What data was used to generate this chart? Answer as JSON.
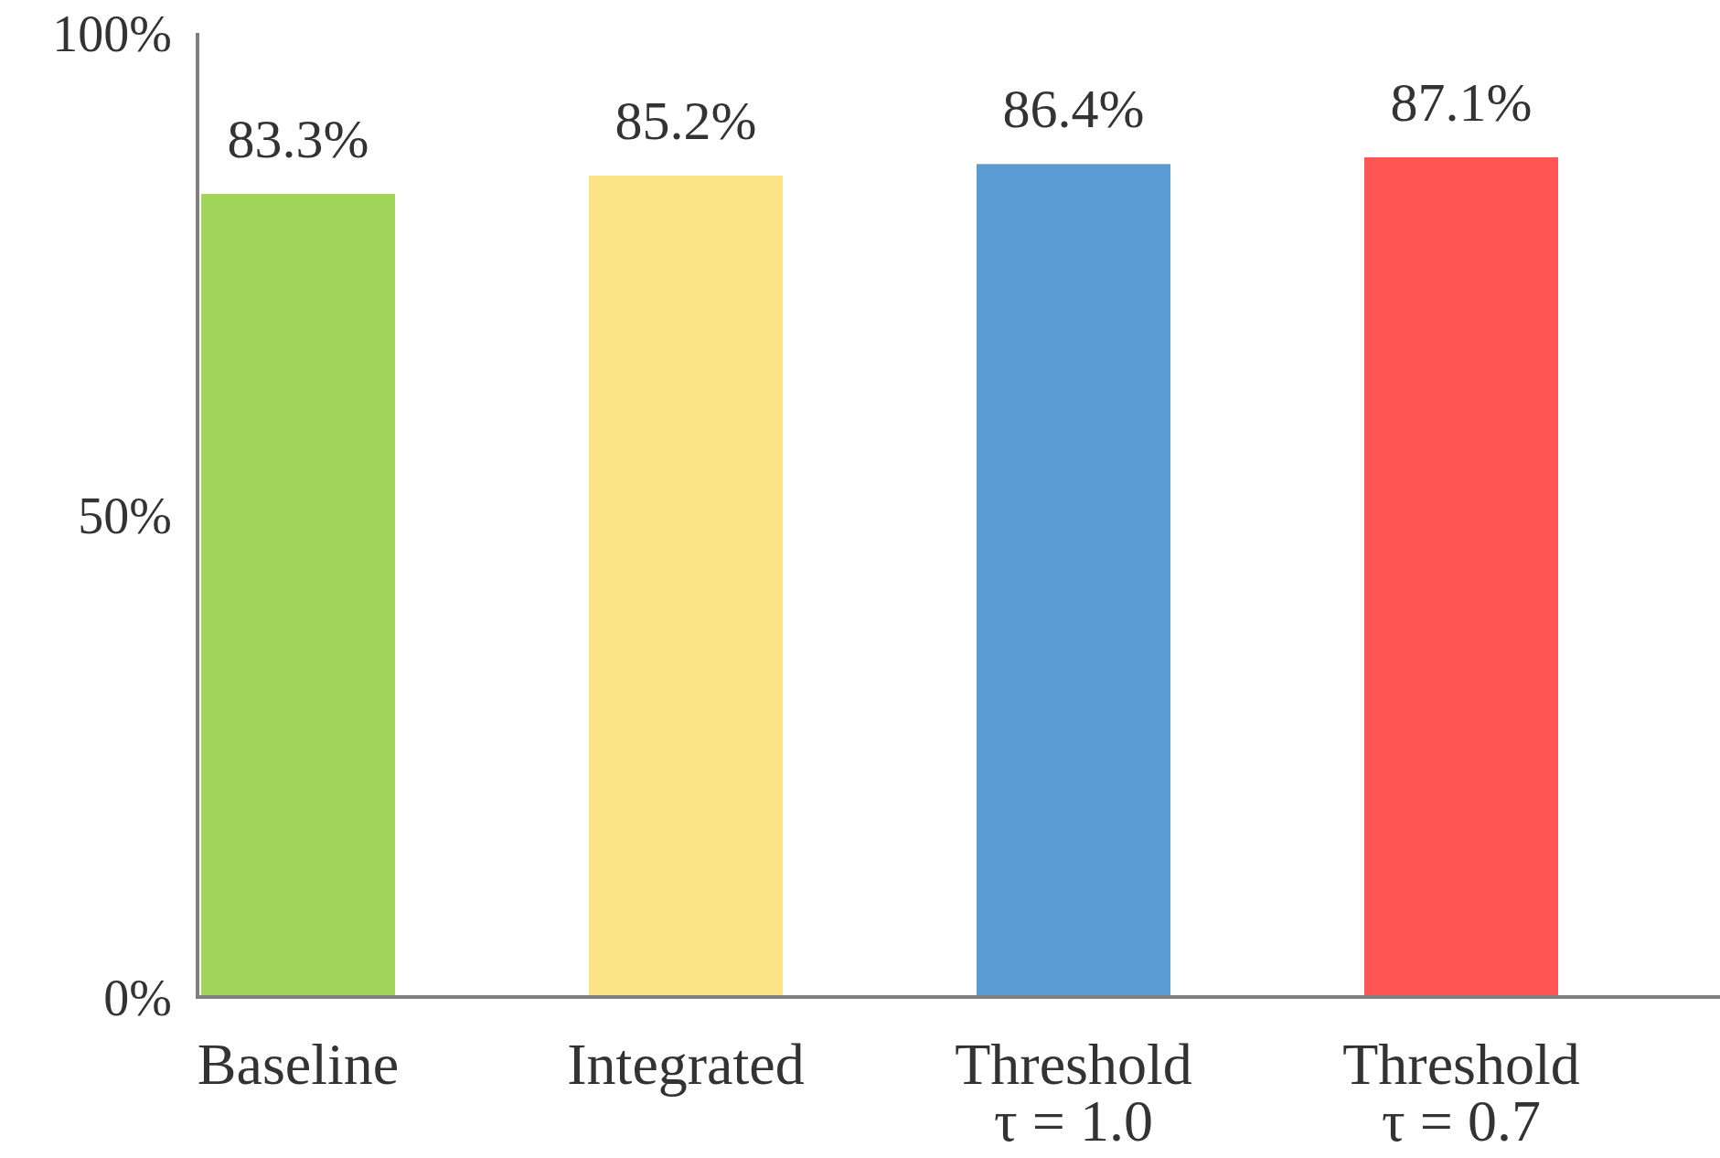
{
  "chart_data": {
    "type": "bar",
    "categories": [
      "Baseline",
      "Integrated",
      "Threshold\nτ = 1.0",
      "Threshold\nτ = 0.7"
    ],
    "values": [
      83.3,
      85.2,
      86.4,
      87.1
    ],
    "colors": [
      "#a0d55a",
      "#fde388",
      "#5b9bd4",
      "#ff5555"
    ],
    "value_labels": [
      "83.3%",
      "85.2%",
      "86.4%",
      "87.1%"
    ],
    "ylim": [
      0,
      100
    ],
    "yticks": [
      {
        "value": 0,
        "label": "0%"
      },
      {
        "value": 50,
        "label": "50%"
      },
      {
        "value": 100,
        "label": "100%"
      }
    ],
    "grid": false
  }
}
